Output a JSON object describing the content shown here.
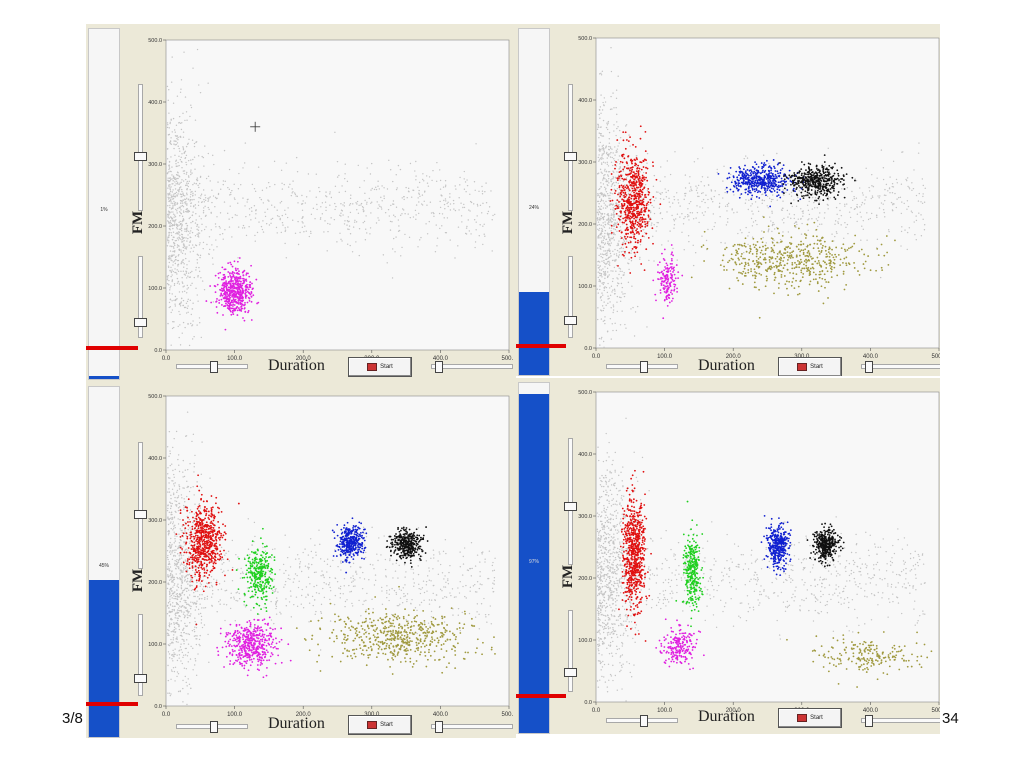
{
  "footer": {
    "left": "3/8",
    "right": "34"
  },
  "ui": {
    "ylabel": "FM",
    "xlabel": "Duration",
    "start_label": "Start"
  },
  "panels": [
    {
      "progress_label": "1%",
      "progress": 0.01
    },
    {
      "progress_label": "24%",
      "progress": 0.24
    },
    {
      "progress_label": "45%",
      "progress": 0.45
    },
    {
      "progress_label": "97%",
      "progress": 0.97
    }
  ],
  "colors": {
    "background_cloud": "#c4c4c4",
    "red": "#e01010",
    "magenta": "#e020e0",
    "blue": "#1020d0",
    "black": "#111111",
    "olive": "#a09a40",
    "green": "#20d020",
    "progress": "#1550c8"
  },
  "chart_data": [
    {
      "type": "scatter",
      "xlabel": "Duration",
      "ylabel": "FM",
      "xlim": [
        0,
        500
      ],
      "ylim": [
        0,
        500
      ],
      "x_ticks": [
        "0.0",
        "100.0",
        "200.0",
        "300.0",
        "400.0",
        "500.0"
      ],
      "y_ticks": [
        "0.0",
        "100.0",
        "200.0",
        "300.0",
        "400.0",
        "500.0"
      ],
      "crosshair": [
        130,
        360
      ],
      "series": [
        {
          "color": "magenta",
          "center": [
            100,
            95
          ],
          "spread": [
            12,
            18
          ],
          "count": 500
        }
      ]
    },
    {
      "type": "scatter",
      "xlabel": "Duration",
      "ylabel": "FM",
      "xlim": [
        0,
        500
      ],
      "ylim": [
        0,
        500
      ],
      "x_ticks": [
        "0.0",
        "100.0",
        "200.0",
        "300.0",
        "400.0",
        "500.0"
      ],
      "y_ticks": [
        "0.0",
        "100.0",
        "200.0",
        "300.0",
        "400.0",
        "500.0"
      ],
      "series": [
        {
          "color": "red",
          "center": [
            55,
            240
          ],
          "spread": [
            12,
            40
          ],
          "count": 600
        },
        {
          "color": "magenta",
          "center": [
            105,
            110
          ],
          "spread": [
            8,
            20
          ],
          "count": 150
        },
        {
          "color": "blue",
          "center": [
            240,
            270
          ],
          "spread": [
            20,
            12
          ],
          "count": 450
        },
        {
          "color": "black",
          "center": [
            320,
            270
          ],
          "spread": [
            20,
            12
          ],
          "count": 450
        },
        {
          "color": "olive",
          "center": [
            285,
            140
          ],
          "spread": [
            55,
            22
          ],
          "count": 500
        }
      ]
    },
    {
      "type": "scatter",
      "xlabel": "Duration",
      "ylabel": "FM",
      "xlim": [
        0,
        500
      ],
      "ylim": [
        0,
        500
      ],
      "x_ticks": [
        "0.0",
        "100.0",
        "200.0",
        "300.0",
        "400.0",
        "500.0"
      ],
      "y_ticks": [
        "0.0",
        "100.0",
        "200.0",
        "300.0",
        "400.0",
        "500.0"
      ],
      "series": [
        {
          "color": "red",
          "center": [
            55,
            265
          ],
          "spread": [
            14,
            30
          ],
          "count": 600
        },
        {
          "color": "green",
          "center": [
            135,
            210
          ],
          "spread": [
            9,
            22
          ],
          "count": 300
        },
        {
          "color": "magenta",
          "center": [
            125,
            100
          ],
          "spread": [
            18,
            18
          ],
          "count": 450
        },
        {
          "color": "blue",
          "center": [
            270,
            265
          ],
          "spread": [
            10,
            14
          ],
          "count": 350
        },
        {
          "color": "black",
          "center": [
            350,
            260
          ],
          "spread": [
            10,
            12
          ],
          "count": 350
        },
        {
          "color": "olive",
          "center": [
            340,
            110
          ],
          "spread": [
            55,
            20
          ],
          "count": 550
        }
      ]
    },
    {
      "type": "scatter",
      "xlabel": "Duration",
      "ylabel": "FM",
      "xlim": [
        0,
        500
      ],
      "ylim": [
        0,
        500
      ],
      "x_ticks": [
        "0.0",
        "100.0",
        "200.0",
        "300.0",
        "400.0",
        "500.0"
      ],
      "y_ticks": [
        "0.0",
        "100.0",
        "200.0",
        "300.0",
        "400.0",
        "500.0"
      ],
      "series": [
        {
          "color": "red",
          "center": [
            55,
            240
          ],
          "spread": [
            8,
            45
          ],
          "count": 650
        },
        {
          "color": "green",
          "center": [
            140,
            210
          ],
          "spread": [
            6,
            28
          ],
          "count": 300
        },
        {
          "color": "magenta",
          "center": [
            120,
            90
          ],
          "spread": [
            12,
            15
          ],
          "count": 200
        },
        {
          "color": "blue",
          "center": [
            265,
            250
          ],
          "spread": [
            8,
            16
          ],
          "count": 350
        },
        {
          "color": "black",
          "center": [
            335,
            255
          ],
          "spread": [
            9,
            13
          ],
          "count": 350
        },
        {
          "color": "olive",
          "center": [
            400,
            75
          ],
          "spread": [
            40,
            14
          ],
          "count": 200
        }
      ]
    }
  ]
}
